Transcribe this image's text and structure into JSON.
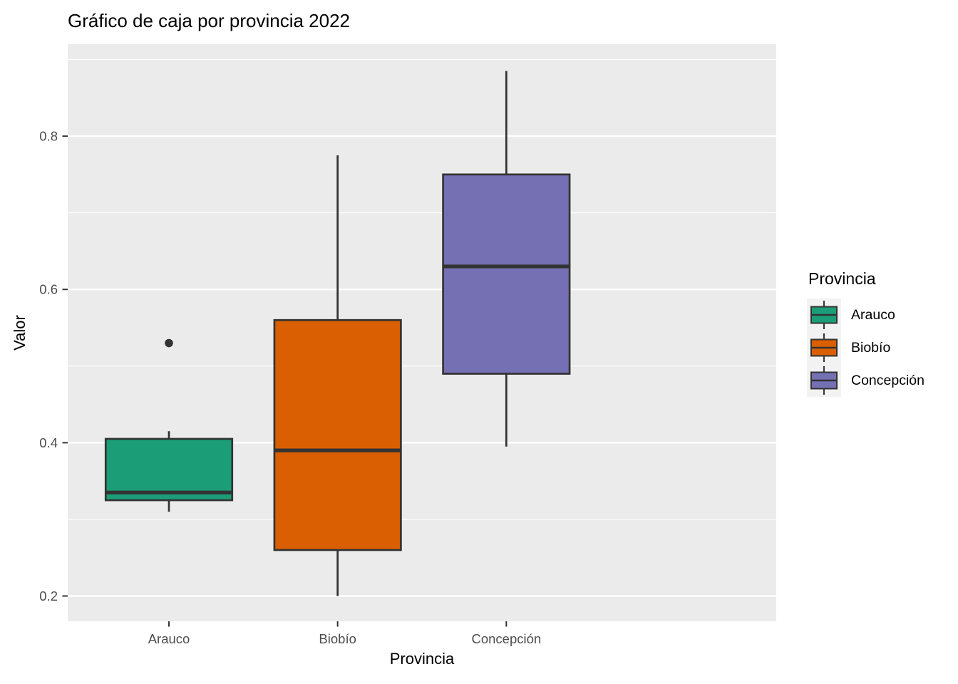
{
  "title": "Gráfico de caja por provincia 2022",
  "chart_data": {
    "type": "boxplot",
    "title": "Gráfico de caja por provincia 2022",
    "xlabel": "Provincia",
    "ylabel": "Valor",
    "categories": [
      "Arauco",
      "Biobío",
      "Concepción"
    ],
    "series": [
      {
        "name": "Arauco",
        "color": "#1B9E77",
        "whisker_low": 0.31,
        "q1": 0.325,
        "median": 0.335,
        "q3": 0.405,
        "whisker_high": 0.415,
        "outliers": [
          0.53
        ]
      },
      {
        "name": "Biobío",
        "color": "#D95F02",
        "whisker_low": 0.2,
        "q1": 0.26,
        "median": 0.39,
        "q3": 0.56,
        "whisker_high": 0.775,
        "outliers": []
      },
      {
        "name": "Concepción",
        "color": "#7570B3",
        "whisker_low": 0.395,
        "q1": 0.49,
        "median": 0.63,
        "q3": 0.75,
        "whisker_high": 0.885,
        "outliers": []
      }
    ],
    "ylim": [
      0.167,
      0.92
    ],
    "y_ticks": [
      0.2,
      0.4,
      0.6,
      0.8
    ],
    "y_minor_ticks": [
      0.3,
      0.5,
      0.7,
      0.9
    ],
    "grid": true,
    "legend": {
      "title": "Provincia",
      "position": "right",
      "entries": [
        {
          "label": "Arauco",
          "color": "#1B9E77"
        },
        {
          "label": "Biobío",
          "color": "#D95F02"
        },
        {
          "label": "Concepción",
          "color": "#7570B3"
        }
      ]
    },
    "colors": {
      "panel_bg": "#EBEBEB",
      "grid": "#FFFFFF",
      "stroke": "#333333",
      "tick_label": "#4D4D4D",
      "legend_key_bg": "#F2F2F2"
    }
  }
}
